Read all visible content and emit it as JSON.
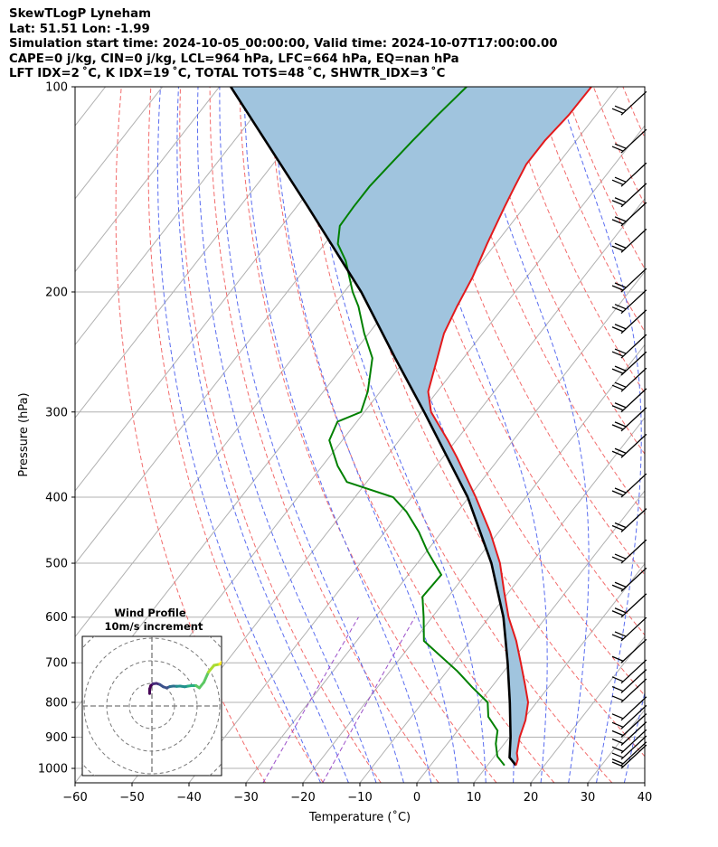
{
  "header": {
    "line1": "SkewTLogP Lyneham",
    "line2": "Lat: 51.51   Lon: -1.99",
    "line3": "Simulation start time: 2024-10-05_00:00:00, Valid time: 2024-10-07T17:00:00.00",
    "line4": "CAPE=0 j/kg, CIN=0 j/kg, LCL=964 hPa, LFC=664 hPa, EQ=nan hPa",
    "line5": "LFT IDX=2 ˚C, K IDX=19 ˚C, TOTAL TOTS=48 ˚C, SHWTR_IDX=3 ˚C"
  },
  "colors": {
    "temperature": "#e31a1c",
    "dewpoint": "#008000",
    "parcel": "#000000",
    "shade": "#a0c4de",
    "isotherm": "#b0b0b0",
    "dry_adiabat": "#f26b6b",
    "moist_adiabat": "#5a6df0",
    "mixing_ratio": "#9b4fc9"
  },
  "chart_data": {
    "type": "skewt-logp",
    "title": "SkewTLogP Lyneham",
    "xlabel": "Temperature (˚C)",
    "ylabel": "Pressure (hPa)",
    "xlim": [
      -60,
      40
    ],
    "ylim": [
      1050,
      100
    ],
    "x_ticks": [
      -60,
      -50,
      -40,
      -30,
      -20,
      -10,
      0,
      10,
      20,
      30,
      40
    ],
    "x_tick_labels": [
      "−60",
      "−50",
      "−40",
      "−30",
      "−20",
      "−10",
      "0",
      "10",
      "20",
      "30",
      "40"
    ],
    "y_ticks": [
      1000,
      900,
      800,
      700,
      600,
      500,
      400,
      300,
      200,
      100
    ],
    "y_tick_labels": [
      "1000",
      "900",
      "800",
      "700",
      "600",
      "500",
      "400",
      "300",
      "200",
      "100"
    ],
    "series": [
      {
        "name": "temperature",
        "pressure": [
          990,
          970,
          950,
          900,
          850,
          800,
          750,
          700,
          650,
          600,
          550,
          500,
          450,
          400,
          350,
          330,
          300,
          280,
          250,
          230,
          210,
          190,
          170,
          150,
          140,
          130,
          120,
          110,
          100
        ],
        "temp": [
          15.0,
          14.5,
          13.5,
          11.8,
          10.5,
          8.5,
          5.3,
          1.8,
          -2.0,
          -6.6,
          -10.9,
          -15.5,
          -21.5,
          -28.8,
          -37.5,
          -41.5,
          -48.3,
          -51.6,
          -54.6,
          -56.8,
          -58.2,
          -59.5,
          -61.5,
          -63.5,
          -64.5,
          -65.5,
          -65.5,
          -64.8,
          -64.7
        ]
      },
      {
        "name": "dewpoint",
        "pressure": [
          990,
          960,
          920,
          880,
          840,
          800,
          760,
          720,
          680,
          650,
          600,
          560,
          520,
          480,
          450,
          420,
          400,
          380,
          360,
          330,
          310,
          300,
          280,
          250,
          230,
          210,
          200,
          180,
          170,
          160,
          150,
          140,
          130,
          120,
          110,
          100
        ],
        "temp": [
          13.0,
          10.5,
          8.5,
          7.0,
          3.5,
          1.4,
          -3.4,
          -8.2,
          -13.8,
          -18.2,
          -21.5,
          -24.5,
          -24.2,
          -29.9,
          -34.0,
          -39.0,
          -43.3,
          -53.5,
          -57.3,
          -62.3,
          -63.4,
          -60.6,
          -62.2,
          -66.0,
          -70.8,
          -75.5,
          -78.5,
          -84.0,
          -87.7,
          -89.8,
          -90.0,
          -90.0,
          -89.4,
          -88.7,
          -87.8,
          -86.6
        ]
      },
      {
        "name": "parcel",
        "pressure": [
          990,
          964,
          900,
          800,
          700,
          664,
          600,
          500,
          400,
          300,
          250,
          200,
          150,
          100
        ],
        "temp": [
          15.0,
          12.8,
          10.2,
          5.3,
          -0.5,
          -2.9,
          -7.5,
          -17.0,
          -30.2,
          -49.5,
          -62.0,
          -77.0,
          -98.0,
          -128.0
        ]
      }
    ],
    "wind_barb_pressures": [
      1000,
      990,
      970,
      950,
      925,
      900,
      875,
      850,
      800,
      775,
      750,
      700,
      650,
      600,
      550,
      500,
      450,
      400,
      350,
      320,
      300,
      280,
      265,
      250,
      230,
      215,
      200,
      175,
      160,
      150,
      140,
      125,
      110
    ],
    "inset": {
      "title": "Wind Profile",
      "subtitle": "10m/s increment",
      "rings_ms": [
        10,
        20,
        30,
        40
      ],
      "hodograph_u": [
        -1,
        -1,
        -0.5,
        0.5,
        2,
        3.5,
        5,
        6.5,
        8,
        9.5,
        11,
        12.5,
        14.5,
        16,
        17.5,
        19.5,
        21,
        23,
        25,
        27.5,
        30,
        32.5,
        35
      ],
      "hodograph_v": [
        5.5,
        7.5,
        9,
        9.8,
        10,
        9.5,
        8.5,
        8,
        8.6,
        8.8,
        8.7,
        8.8,
        8.5,
        8.8,
        9,
        9,
        8,
        10.5,
        15,
        18,
        18.5,
        21,
        23
      ]
    }
  }
}
